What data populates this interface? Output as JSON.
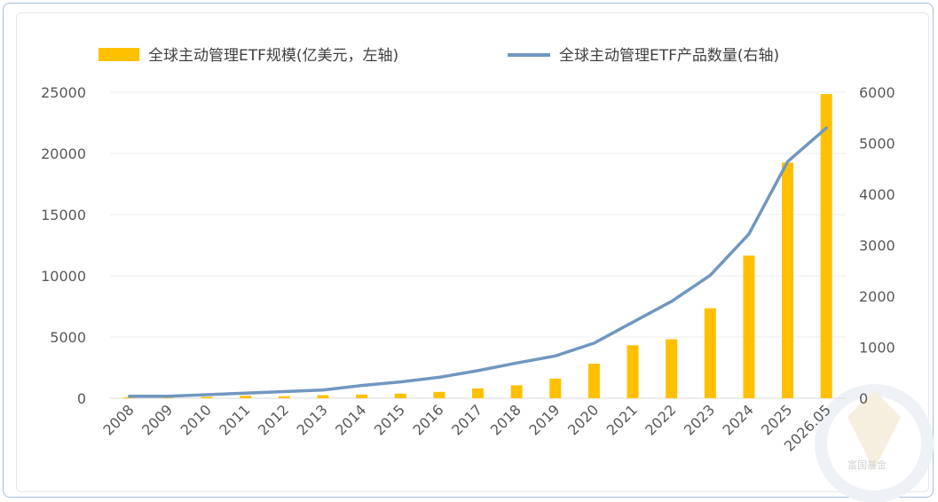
{
  "chart_data": {
    "type": "bar+line",
    "categories": [
      "2008",
      "2009",
      "2010",
      "2011",
      "2012",
      "2013",
      "2014",
      "2015",
      "2016",
      "2017",
      "2018",
      "2019",
      "2020",
      "2021",
      "2022",
      "2023",
      "2024",
      "2025",
      "2026.05"
    ],
    "series": [
      {
        "name": "全球主动管理ETF规模(亿美元，左轴)",
        "type": "bar",
        "axis": "left",
        "color": "#FFC000",
        "values": [
          80,
          60,
          110,
          200,
          160,
          250,
          300,
          380,
          520,
          800,
          1060,
          1600,
          2820,
          4330,
          4820,
          7350,
          11650,
          19250,
          24850
        ]
      },
      {
        "name": "全球主动管理ETF产品数量(右轴)",
        "type": "line",
        "axis": "right",
        "color": "#7097BF",
        "values": [
          40,
          40,
          70,
          100,
          130,
          160,
          250,
          320,
          410,
          540,
          690,
          830,
          1080,
          1490,
          1900,
          2410,
          3220,
          4640,
          5300
        ]
      }
    ],
    "ylim_left": [
      0,
      25000
    ],
    "yticks_left": [
      "0",
      "5000",
      "10000",
      "15000",
      "20000",
      "25000"
    ],
    "ylim_right": [
      0,
      6000
    ],
    "yticks_right": [
      "0",
      "1000",
      "2000",
      "3000",
      "4000",
      "5000",
      "6000"
    ],
    "legend": "top",
    "grid": true
  },
  "watermark": {
    "text": "富国基金"
  }
}
